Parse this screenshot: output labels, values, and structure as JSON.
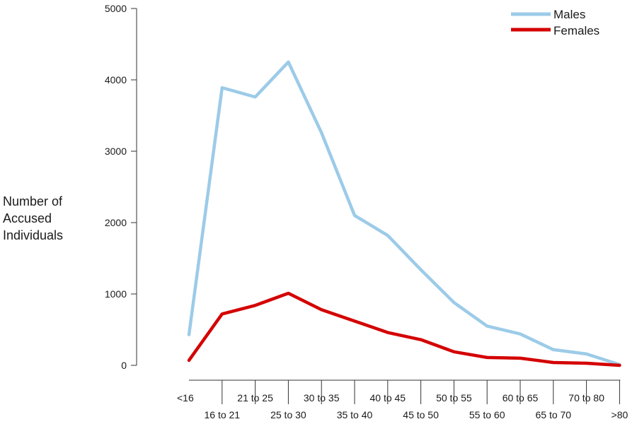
{
  "chart_data": {
    "type": "line",
    "ylabel_lines": [
      "Number of",
      "Accused",
      "Individuals"
    ],
    "xlabel": "",
    "ylim": [
      0,
      5000
    ],
    "yticks": [
      0,
      1000,
      2000,
      3000,
      4000,
      5000
    ],
    "categories": [
      "<16",
      "16 to 21",
      "21 to 25",
      "25 to 30",
      "30 to 35",
      "35 to 40",
      "40 to 45",
      "45 to 50",
      "50 to 55",
      "55 to 60",
      "60 to 65",
      "65 to 70",
      "70 to 80",
      ">80"
    ],
    "series": [
      {
        "name": "Males",
        "color": "#9ccbe8",
        "values": [
          430,
          3890,
          3760,
          4250,
          3260,
          2100,
          1820,
          1340,
          880,
          550,
          440,
          220,
          160,
          10
        ]
      },
      {
        "name": "Females",
        "color": "#d40000",
        "values": [
          70,
          720,
          840,
          1010,
          780,
          620,
          460,
          360,
          190,
          110,
          100,
          40,
          30,
          0
        ]
      }
    ],
    "legend_position": "top-right",
    "grid": false
  }
}
